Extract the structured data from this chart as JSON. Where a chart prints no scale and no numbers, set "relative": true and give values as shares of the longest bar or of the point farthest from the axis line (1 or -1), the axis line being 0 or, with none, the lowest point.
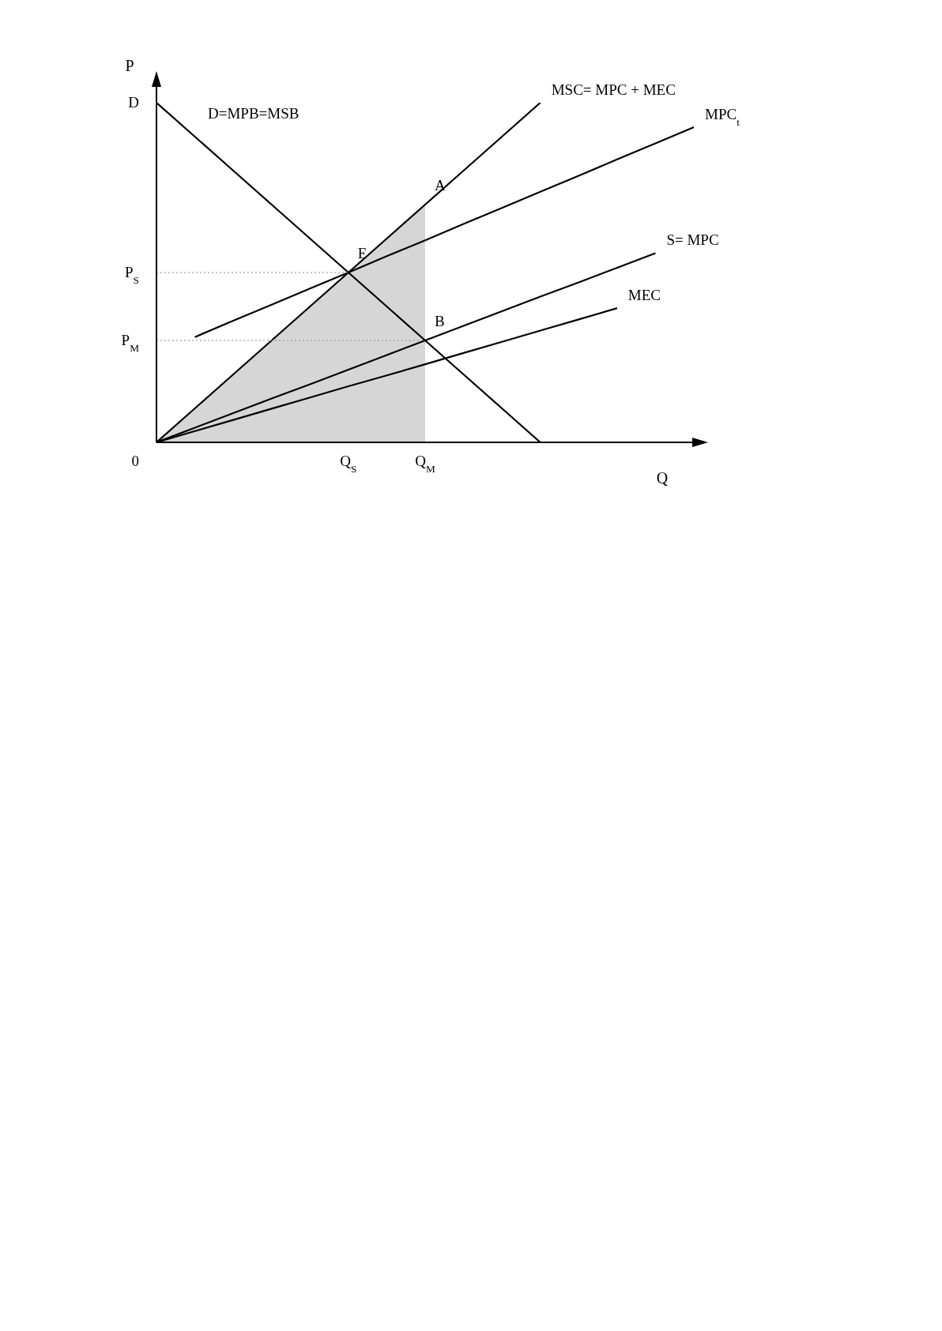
{
  "chart_data": {
    "type": "line",
    "relative": true,
    "xlabel": "Q",
    "ylabel": "P",
    "legend": false,
    "grid": false,
    "marker": "none",
    "line_style": "solid",
    "categories": [
      null,
      null,
      null,
      null,
      null,
      "Q$_{S}$",
      null,
      "Q$_{M}$",
      null,
      null,
      null,
      null,
      null,
      null,
      null
    ],
    "series": [
      {
        "name": "D=MPB=MSB",
        "color": "#000000",
        "values": [
          1,
          0.9,
          0.8,
          0.7,
          0.6,
          0.5,
          0.4,
          0.3,
          0.2,
          0.1,
          0,
          null,
          null,
          null,
          null
        ]
      },
      {
        "name": "MSC= MPC + MEC",
        "color": "#000000",
        "values": [
          0,
          0.1,
          0.2,
          0.3,
          0.4,
          0.5,
          0.6,
          0.7,
          0.8,
          0.9,
          1,
          null,
          null,
          null,
          null
        ]
      },
      {
        "name": "MPC$_{t}$",
        "color": "#000000",
        "values": [
          null,
          0.31,
          0.358,
          0.405,
          0.453,
          0.5,
          0.548,
          0.595,
          0.643,
          0.69,
          0.738,
          0.785,
          0.833,
          0.88,
          0.928
        ]
      },
      {
        "name": "S= MPC",
        "color": "#000000",
        "values": [
          0,
          0.043,
          0.086,
          0.129,
          0.171,
          0.214,
          0.257,
          0.3,
          0.343,
          0.386,
          0.429,
          0.471,
          0.514,
          0.557,
          null
        ]
      },
      {
        "name": "MEC",
        "color": "#000000",
        "values": [
          0,
          0.033,
          0.066,
          0.099,
          0.132,
          0.165,
          0.197,
          0.23,
          0.263,
          0.296,
          0.329,
          0.362,
          0.395,
          null,
          null
        ]
      },
      {
        "type": "area",
        "color": "#cccccc",
        "values": [
          0,
          0.1,
          0.2,
          0.3,
          0.4,
          0.5,
          0.6,
          0.7,
          null,
          null,
          null,
          null,
          null,
          null,
          null
        ]
      },
      {
        "name": "P$_{S}$",
        "color": "#888888",
        "line_style": "dotted",
        "values": [
          0.5,
          0.5,
          0.5,
          0.5,
          0.5,
          0.5,
          null,
          null,
          null,
          null,
          null,
          null,
          null,
          null,
          null
        ]
      },
      {
        "name": "P$_{M}$",
        "color": "#888888",
        "line_style": "dotted",
        "values": [
          0.3,
          0.3,
          0.3,
          0.3,
          0.3,
          0.3,
          0.3,
          0.3,
          null,
          null,
          null,
          null,
          null,
          null,
          null
        ]
      }
    ],
    "annotations": [
      {
        "text": "E",
        "x": "Q$_{S}$",
        "y": 0.5
      },
      {
        "text": "A",
        "x": "Q$_{M}$",
        "y": 0.7
      },
      {
        "text": "B",
        "x": "Q$_{M}$",
        "y": 0.3
      },
      "D",
      "0"
    ]
  }
}
